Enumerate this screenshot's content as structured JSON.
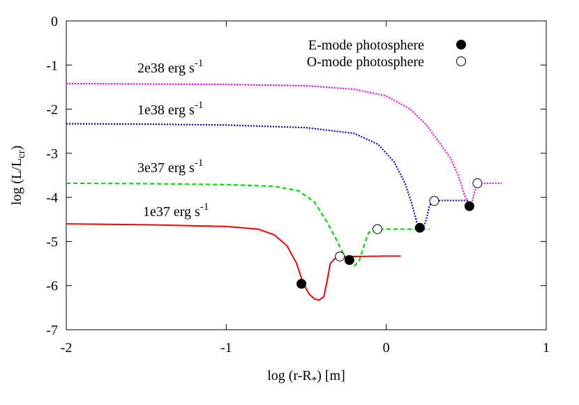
{
  "chart_data": {
    "type": "line",
    "xlabel": [
      "log (r-R",
      "*",
      ") [m]"
    ],
    "ylabel": [
      "log (L/L",
      "cr",
      ")"
    ],
    "xlim": [
      -2,
      1
    ],
    "xticks": [
      -2,
      -1,
      0,
      1
    ],
    "ylim": [
      -7,
      0
    ],
    "yticks": [
      0,
      -1,
      -2,
      -3,
      -4,
      -5,
      -6,
      -7
    ],
    "curves": [
      {
        "label": [
          "2e38 erg s",
          "-1"
        ],
        "color": "#ff00ff",
        "dash": "dotted",
        "x": [
          -2,
          -1.5,
          -1,
          -0.5,
          -0.2,
          0,
          0.15,
          0.25,
          0.33,
          0.4,
          0.45,
          0.49,
          0.52,
          0.53,
          0.55,
          0.57,
          0.65,
          0.72
        ],
        "y": [
          -1.42,
          -1.43,
          -1.44,
          -1.47,
          -1.55,
          -1.7,
          -2.0,
          -2.35,
          -2.75,
          -3.1,
          -3.5,
          -3.95,
          -4.2,
          -4.22,
          -3.9,
          -3.68,
          -3.68,
          -3.68
        ]
      },
      {
        "label": [
          "1e38 erg s",
          "-1"
        ],
        "color": "#0000ff",
        "dash": "dotted",
        "x": [
          -2,
          -1.5,
          -1,
          -0.5,
          -0.2,
          -0.05,
          0.05,
          0.12,
          0.16,
          0.19,
          0.21,
          0.23,
          0.25,
          0.27,
          0.29,
          0.35,
          0.45,
          0.52
        ],
        "y": [
          -2.33,
          -2.34,
          -2.36,
          -2.42,
          -2.55,
          -2.8,
          -3.2,
          -3.7,
          -4.15,
          -4.55,
          -4.7,
          -4.72,
          -4.5,
          -4.2,
          -4.08,
          -4.07,
          -4.07,
          -4.07
        ]
      },
      {
        "label": [
          "3e37 erg s",
          "-1"
        ],
        "color": "#00dd00",
        "dash": "dashed",
        "x": [
          -2,
          -1.5,
          -1,
          -0.7,
          -0.55,
          -0.45,
          -0.38,
          -0.32,
          -0.28,
          -0.24,
          -0.2,
          -0.17,
          -0.14,
          -0.11,
          -0.08,
          0,
          0.1,
          0.27
        ],
        "y": [
          -3.68,
          -3.69,
          -3.71,
          -3.75,
          -3.85,
          -4.1,
          -4.5,
          -4.9,
          -5.2,
          -5.45,
          -5.55,
          -5.45,
          -5.1,
          -4.8,
          -4.73,
          -4.72,
          -4.72,
          -4.72
        ]
      },
      {
        "label": [
          "1e37 erg s",
          "-1"
        ],
        "color": "#ff0000",
        "dash": "solid",
        "x": [
          -2,
          -1.5,
          -1,
          -0.8,
          -0.7,
          -0.62,
          -0.56,
          -0.52,
          -0.48,
          -0.45,
          -0.42,
          -0.39,
          -0.37,
          -0.35,
          -0.32,
          -0.28,
          -0.2,
          0,
          0.09
        ],
        "y": [
          -4.6,
          -4.62,
          -4.66,
          -4.72,
          -4.85,
          -5.1,
          -5.5,
          -5.95,
          -6.2,
          -6.3,
          -6.33,
          -6.25,
          -5.9,
          -5.5,
          -5.38,
          -5.35,
          -5.34,
          -5.33,
          -5.33
        ]
      }
    ],
    "markers": [
      {
        "name": "E-mode photosphere",
        "filled": true,
        "x": [
          -0.53,
          -0.23,
          0.21,
          0.52
        ],
        "y": [
          -5.96,
          -5.42,
          -4.69,
          -4.2
        ]
      },
      {
        "name": "O-mode photosphere",
        "filled": false,
        "x": [
          -0.29,
          -0.055,
          0.3,
          0.57
        ],
        "y": [
          -5.34,
          -4.72,
          -4.08,
          -3.68
        ]
      }
    ]
  }
}
